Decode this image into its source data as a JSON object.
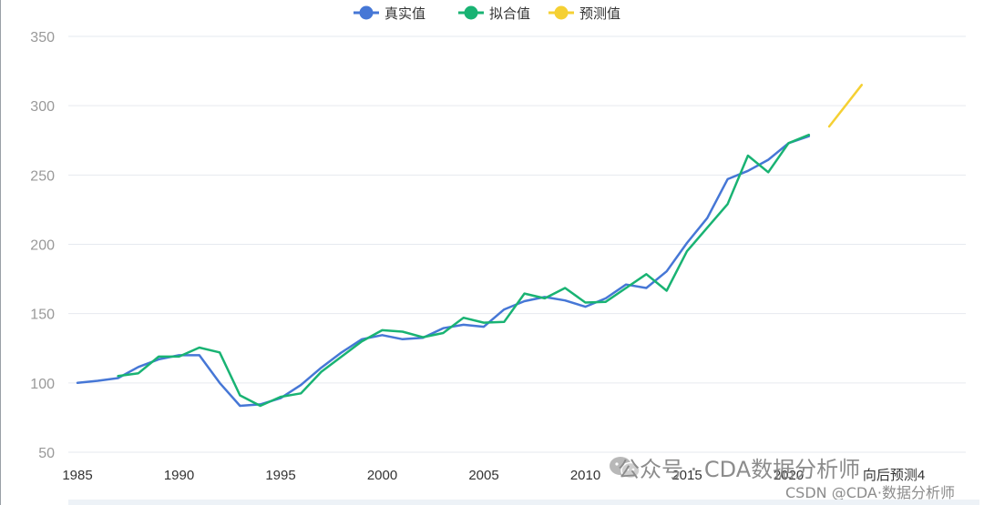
{
  "chart_data": {
    "type": "line",
    "title": "",
    "xlabel": "",
    "ylabel": "",
    "xlim": [
      1985,
      2024
    ],
    "ylim": [
      50,
      350
    ],
    "y_ticks": [
      50,
      100,
      150,
      200,
      250,
      300,
      350
    ],
    "x_ticks": [
      "1985",
      "1990",
      "1995",
      "2000",
      "2005",
      "2010",
      "2015",
      "2020",
      "向后预测4"
    ],
    "grid": "horizontal",
    "legend_position": "top-center",
    "series": [
      {
        "name": "真实值",
        "color": "#4677d6",
        "x": [
          1985,
          1986,
          1987,
          1988,
          1989,
          1990,
          1991,
          1992,
          1993,
          1994,
          1995,
          1996,
          1997,
          1998,
          1999,
          2000,
          2001,
          2002,
          2003,
          2004,
          2005,
          2006,
          2007,
          2008,
          2009,
          2010,
          2011,
          2012,
          2013,
          2014,
          2015,
          2016,
          2017,
          2018,
          2019,
          2020,
          2021
        ],
        "values": [
          100,
          101.5,
          103.5,
          111.5,
          117,
          120,
          120,
          100,
          83.5,
          84.5,
          89,
          98.5,
          111,
          122,
          131.5,
          134.5,
          131.5,
          132.5,
          139.5,
          142,
          140.5,
          153,
          159,
          162,
          159.5,
          155,
          161,
          171,
          168.5,
          180.5,
          201,
          219,
          247,
          253,
          261,
          273,
          278
        ]
      },
      {
        "name": "拟合值",
        "color": "#19b373",
        "x": [
          1987,
          1988,
          1989,
          1990,
          1991,
          1992,
          1993,
          1994,
          1995,
          1996,
          1997,
          1998,
          1999,
          2000,
          2001,
          2002,
          2003,
          2004,
          2005,
          2006,
          2007,
          2008,
          2009,
          2010,
          2011,
          2012,
          2013,
          2014,
          2015,
          2016,
          2017,
          2018,
          2019,
          2020,
          2021
        ],
        "values": [
          105,
          107,
          119,
          119,
          125.5,
          122,
          91,
          83.5,
          90,
          92.5,
          108,
          119,
          130,
          138,
          137,
          133,
          136,
          147,
          143.5,
          144,
          164.5,
          161,
          168.5,
          158,
          158.5,
          168.5,
          178.5,
          166.5,
          195,
          212,
          229,
          264,
          252,
          273,
          279
        ]
      },
      {
        "name": "预测值",
        "color": "#f5d033",
        "x": [
          2022,
          2023.6
        ],
        "values": [
          285,
          315
        ]
      }
    ]
  },
  "watermark": {
    "main": "公众号 · CDA数据分析师",
    "sub": "CSDN @CDA·数据分析师"
  }
}
